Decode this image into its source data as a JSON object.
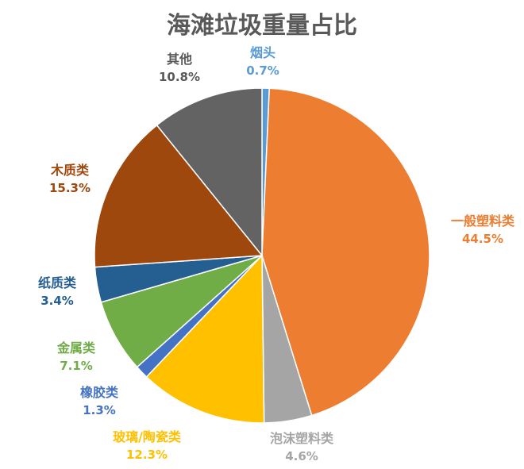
{
  "chart_data": {
    "type": "pie",
    "title": "海滩垃圾重量占比",
    "start": "12 o'clock, clockwise",
    "slices": [
      {
        "label": "烟头",
        "value": 0.7,
        "value_label": "0.7%",
        "color": "#5B9BD5",
        "label_color": "#5B9BD5"
      },
      {
        "label": "一般塑料类",
        "value": 44.5,
        "value_label": "44.5%",
        "color": "#ED7D31",
        "label_color": "#ED7D31"
      },
      {
        "label": "泡沫塑料类",
        "value": 4.6,
        "value_label": "4.6%",
        "color": "#A5A5A5",
        "label_color": "#A5A5A5"
      },
      {
        "label": "玻璃/陶瓷类",
        "value": 12.3,
        "value_label": "12.3%",
        "color": "#FFC000",
        "label_color": "#FFC000"
      },
      {
        "label": "橡胶类",
        "value": 1.3,
        "value_label": "1.3%",
        "color": "#4472C4",
        "label_color": "#4472C4"
      },
      {
        "label": "金属类",
        "value": 7.1,
        "value_label": "7.1%",
        "color": "#70AD47",
        "label_color": "#70AD47"
      },
      {
        "label": "纸质类",
        "value": 3.4,
        "value_label": "3.4%",
        "color": "#255E91",
        "label_color": "#255E91"
      },
      {
        "label": "木质类",
        "value": 15.3,
        "value_label": "15.3%",
        "color": "#9E480E",
        "label_color": "#9E480E"
      },
      {
        "label": "其他",
        "value": 10.8,
        "value_label": "10.8%",
        "color": "#636363",
        "label_color": "#595959"
      }
    ]
  }
}
